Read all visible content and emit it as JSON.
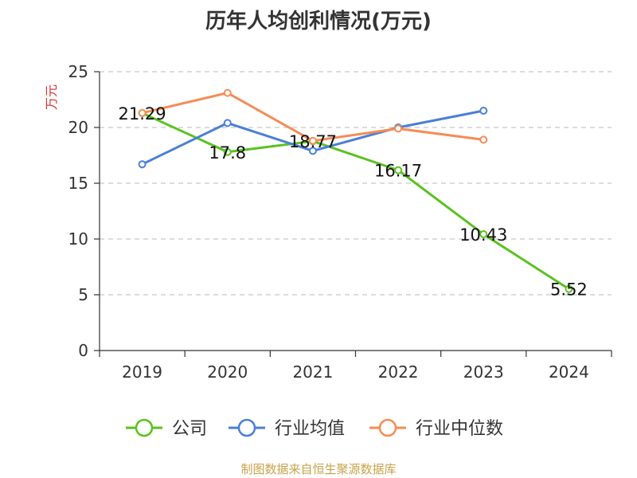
{
  "title": "历年人均创利情况(万元)",
  "source": "制图数据来自恒生聚源数据库",
  "chart_data": {
    "type": "line",
    "title": "历年人均创利情况(万元)",
    "ylabel": "万元",
    "xlabel": "",
    "categories": [
      "2019",
      "2020",
      "2021",
      "2022",
      "2023",
      "2024"
    ],
    "ylim": [
      0,
      25
    ],
    "yticks": [
      0,
      5,
      10,
      15,
      20,
      25
    ],
    "grid": "horizontal-dashed",
    "legend_position": "bottom",
    "series": [
      {
        "name": "公司",
        "color": "#5ac21f",
        "values": [
          21.29,
          17.8,
          18.77,
          16.17,
          10.43,
          5.52
        ],
        "labels": [
          "21.29",
          "17.8",
          "18.77",
          "16.17",
          "10.43",
          "5.52"
        ]
      },
      {
        "name": "行业均值",
        "color": "#4a7fd8",
        "values": [
          16.7,
          20.4,
          17.9,
          20.0,
          21.5,
          null
        ]
      },
      {
        "name": "行业中位数",
        "color": "#f58c55",
        "values": [
          21.3,
          23.1,
          18.8,
          19.9,
          18.9,
          null
        ]
      }
    ]
  }
}
